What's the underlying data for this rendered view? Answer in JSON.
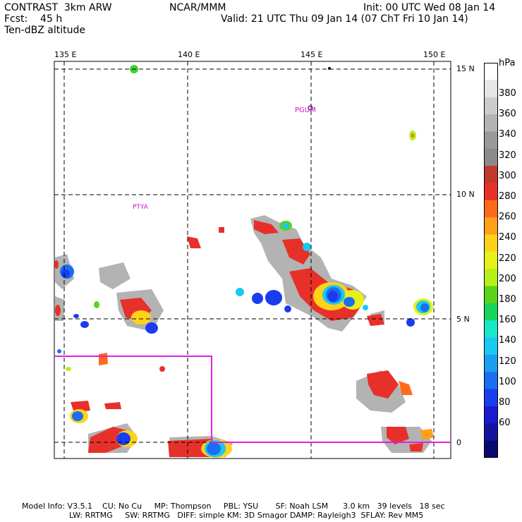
{
  "header": {
    "line1_left": "CONTRAST  3km ARW",
    "line1_center": "NCAR/MMM",
    "line1_right": "Init: 00 UTC Wed 08 Jan 14",
    "line2_left": "Fcst:    45 h",
    "line2_right": "Valid: 21 UTC Thu 09 Jan 14 (07 ChT Fri 10 Jan 14)",
    "line3_left": "Ten-dBZ altitude"
  },
  "map": {
    "lon_labels": [
      "135 E",
      "140 E",
      "145 E",
      "150 E"
    ],
    "lat_labels": [
      "15 N",
      "10 N",
      "5 N",
      "0"
    ],
    "places": [
      "PGUM",
      "PTYA"
    ]
  },
  "colorbar": {
    "unit": "hPa",
    "levels": [
      "380",
      "360",
      "340",
      "320",
      "300",
      "280",
      "260",
      "240",
      "220",
      "200",
      "180",
      "160",
      "140",
      "120",
      "100",
      "80",
      "60"
    ],
    "colors": [
      "#ffffff",
      "#e6e6e6",
      "#cccccc",
      "#b3b3b3",
      "#999999",
      "#8a8a8a",
      "#c0392b",
      "#e8302a",
      "#ff6a1a",
      "#ff9f1a",
      "#ffd21a",
      "#e8f01a",
      "#b4f01a",
      "#5ad41a",
      "#1ad45a",
      "#1ae6c8",
      "#1ac8f0",
      "#1a9ef0",
      "#1a6ef0",
      "#1a3cf0",
      "#1a1ad2",
      "#1414a0",
      "#0a0a6e"
    ]
  },
  "footer": {
    "line1": "Model Info: V3.5.1    CU: No Cu     MP: Thompson     PBL: YSU       SF: Noah LSM      3.0 km   39 levels   18 sec",
    "line2": "LW: RRTMG     SW: RRTMG   DIFF: simple KM: 3D Smagor DAMP: Rayleigh3  SFLAY: Rev MM5"
  }
}
